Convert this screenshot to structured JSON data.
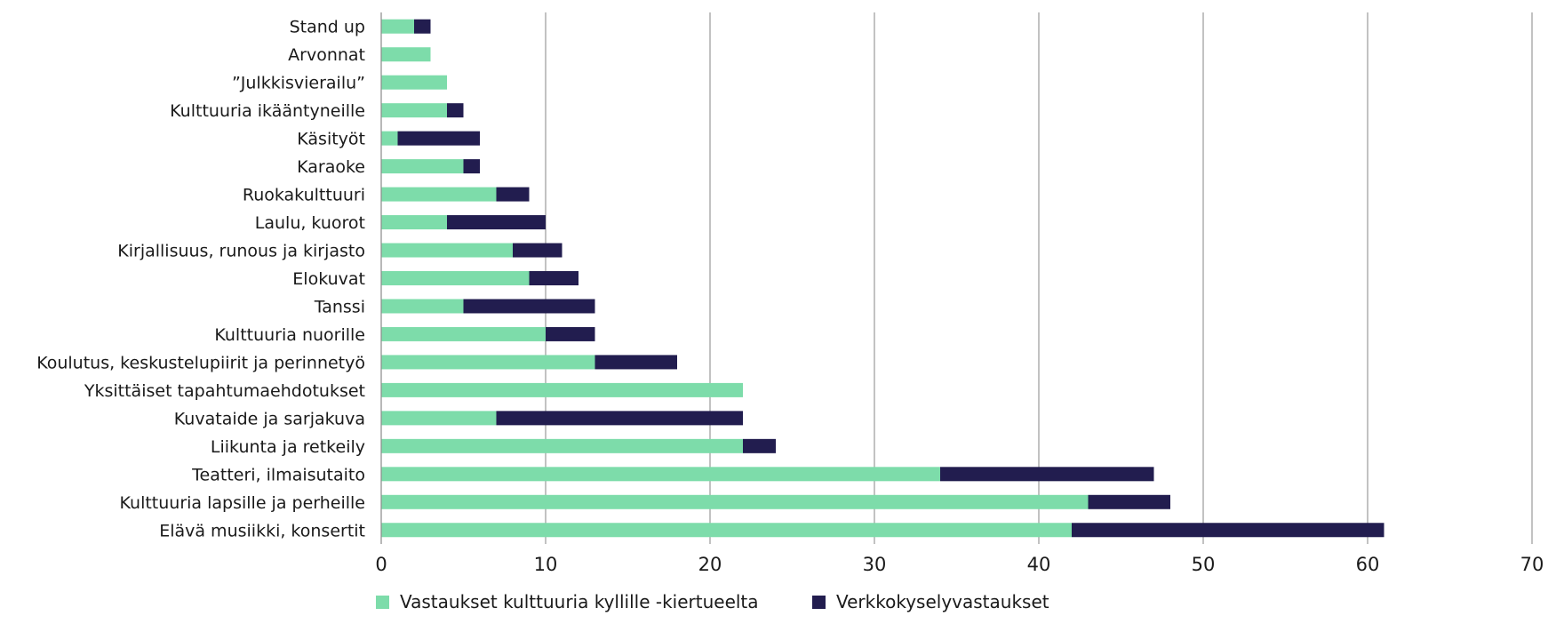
{
  "chart_data": {
    "type": "bar",
    "orientation": "horizontal",
    "stacked": true,
    "categories": [
      "Stand up",
      "Arvonnat",
      "”Julkkisvierailu”",
      "Kulttuuria ikääntyneille",
      "Käsityöt",
      "Karaoke",
      "Ruokakulttuuri",
      "Laulu, kuorot",
      "Kirjallisuus, runous ja kirjasto",
      "Elokuvat",
      "Tanssi",
      "Kulttuuria nuorille",
      "Koulutus, keskustelupiirit ja perinnetyö",
      "Yksittäiset tapahtumaehdotukset",
      "Kuvataide ja sarjakuva",
      "Liikunta ja retkeily",
      "Teatteri, ilmaisutaito",
      "Kulttuuria lapsille ja perheille",
      "Elävä musiikki, konsertit"
    ],
    "series": [
      {
        "name": "Vastaukset kulttuuria kyllille -kiertueelta",
        "color": "#7ddcaa",
        "values": [
          2,
          3,
          4,
          4,
          1,
          5,
          7,
          4,
          8,
          9,
          5,
          10,
          13,
          22,
          7,
          22,
          34,
          43,
          42
        ]
      },
      {
        "name": "Verkkokyselyvastaukset",
        "color": "#221d4f",
        "values": [
          1,
          0,
          0,
          1,
          5,
          1,
          2,
          6,
          3,
          3,
          8,
          3,
          5,
          0,
          15,
          2,
          13,
          5,
          19
        ]
      }
    ],
    "xlim": [
      0,
      70
    ],
    "xticks": [
      0,
      10,
      20,
      30,
      40,
      50,
      60,
      70
    ],
    "grid": "vertical",
    "legend_position": "bottom",
    "title": "",
    "xlabel": "",
    "ylabel": ""
  }
}
